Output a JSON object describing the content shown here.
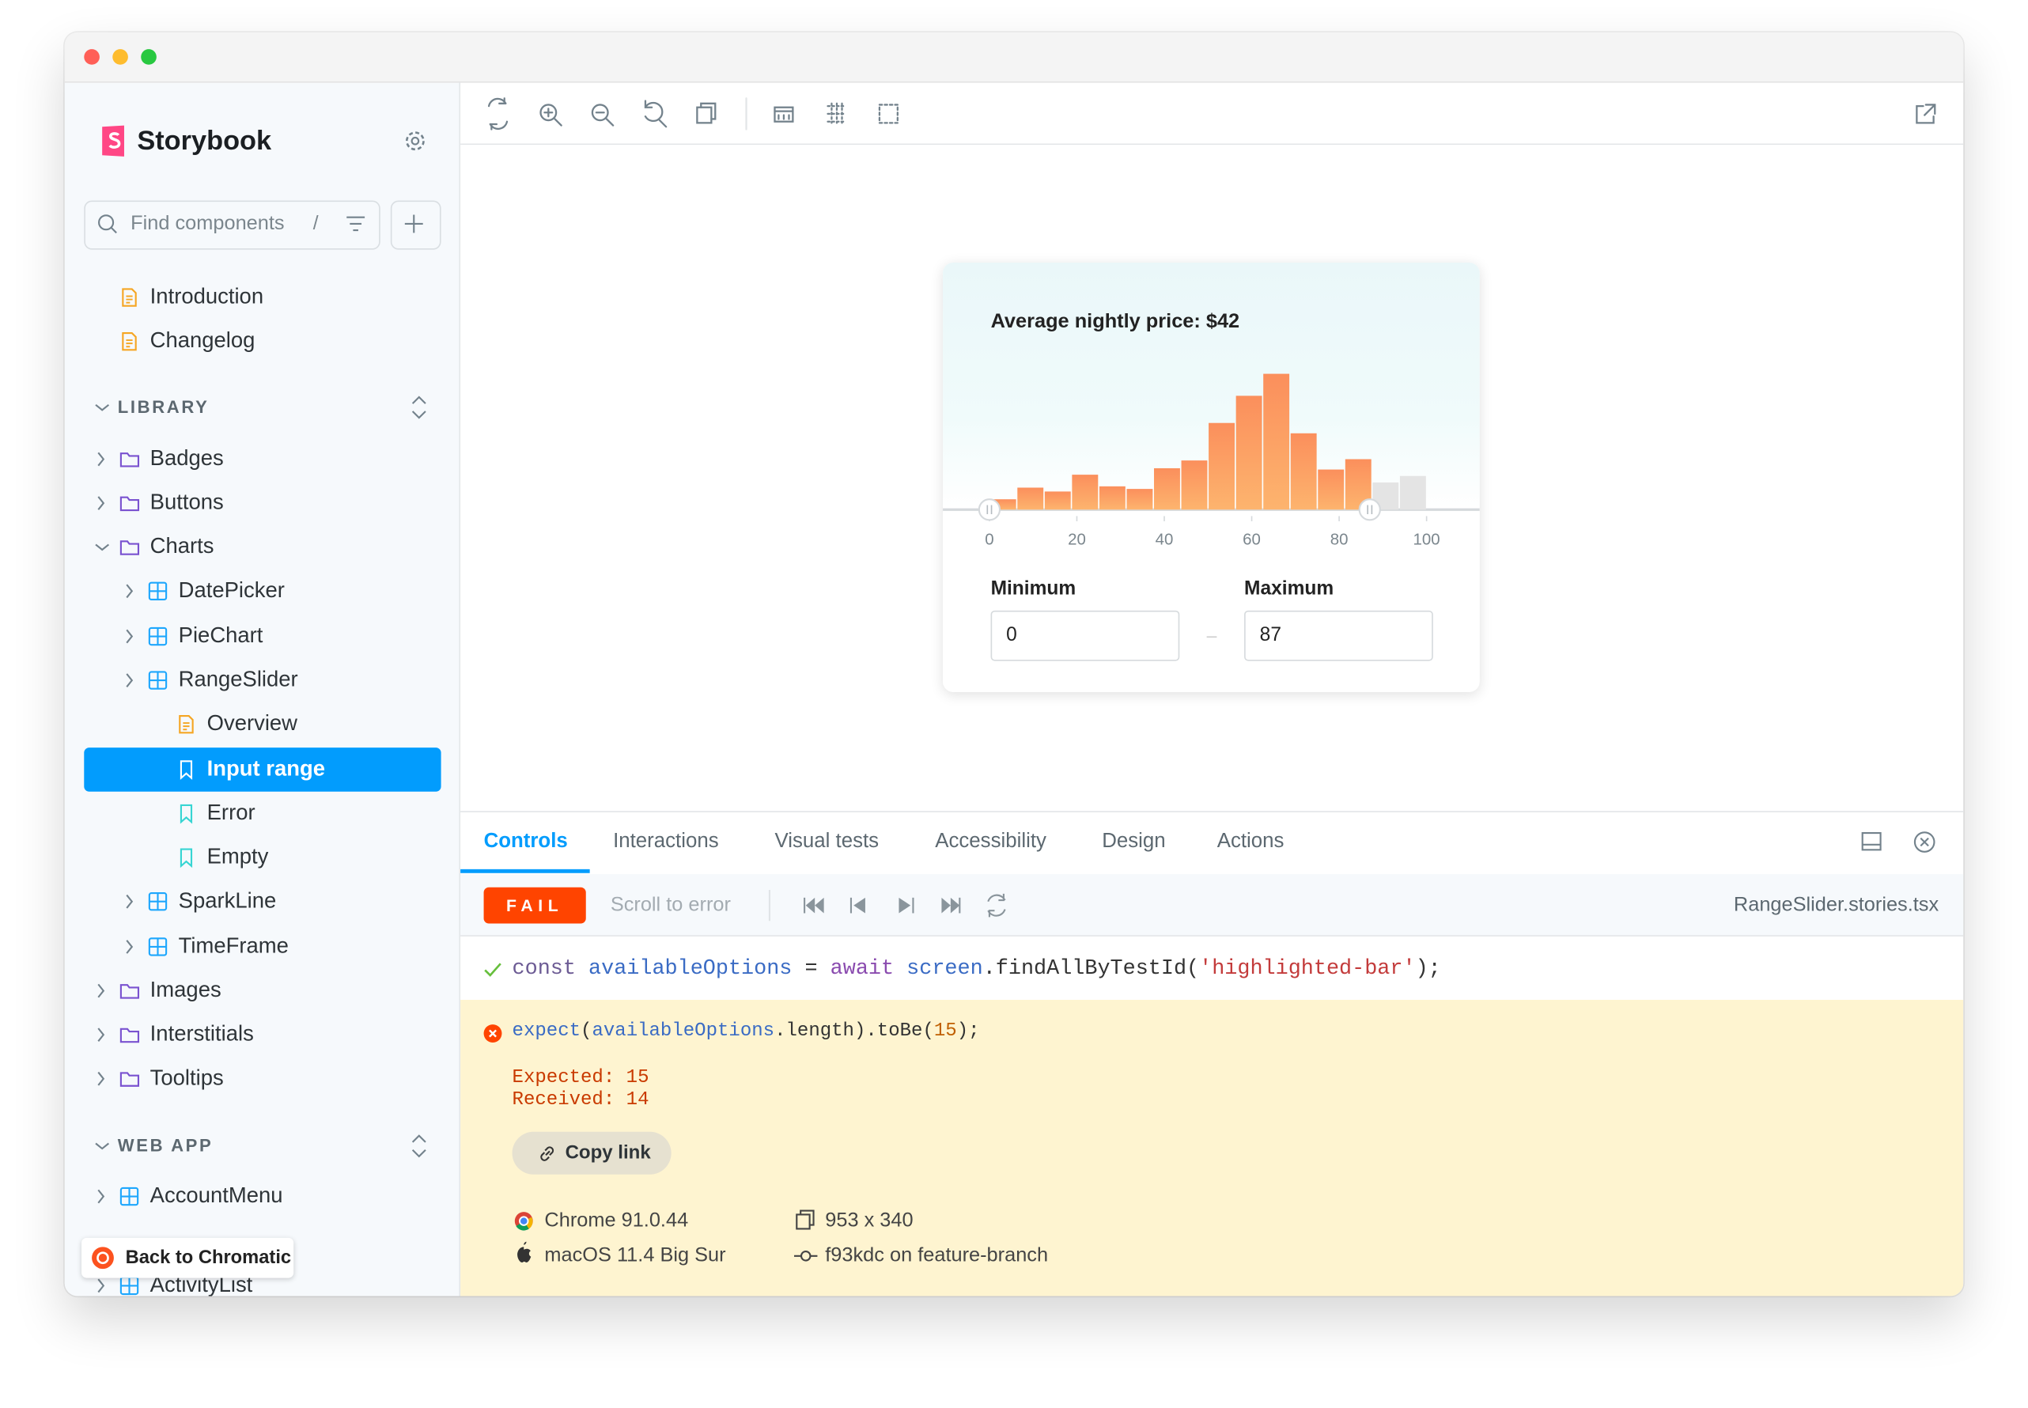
{
  "sidebar": {
    "brand": "Storybook",
    "search_placeholder": "Find components",
    "search_shortcut": "/",
    "top_items": [
      "Introduction",
      "Changelog"
    ],
    "sections": [
      {
        "title": "LIBRARY",
        "items": [
          "Badges",
          "Buttons",
          "Charts",
          "DatePicker",
          "PieChart",
          "RangeSlider",
          "Overview",
          "Input range",
          "Error",
          "Empty",
          "SparkLine",
          "TimeFrame",
          "Images",
          "Interstitials",
          "Tooltips"
        ]
      },
      {
        "title": "WEB APP",
        "items": [
          "AccountMenu",
          "ActivityList"
        ]
      }
    ],
    "back_link": "Back to Chromatic"
  },
  "preview": {
    "chart_data": {
      "type": "histogram",
      "title": "Average nightly price: $42",
      "bins": [
        0,
        6.25,
        12.5,
        18.75,
        25,
        31.25,
        37.5,
        43.75,
        50,
        56.25,
        62.5,
        68.75,
        75,
        81.25,
        87.5,
        93.75,
        100
      ],
      "values": [
        8,
        17,
        14,
        27,
        18,
        16,
        32,
        38,
        67,
        88,
        105,
        59,
        31,
        39,
        21,
        26
      ],
      "xlim": [
        0,
        100
      ],
      "xticks": [
        0,
        20,
        40,
        60,
        80,
        100
      ],
      "color": "#fb8f5c",
      "inactive_color": "#e4e4e4"
    },
    "inputs": [
      {
        "label": "Minimum",
        "value": 0
      },
      {
        "label": "Maximum",
        "value": 87
      }
    ]
  },
  "panel": {
    "tabs": [
      "Controls",
      "Interactions",
      "Visual tests",
      "Accessibility",
      "Design",
      "Actions"
    ],
    "status": "FAIL",
    "scroll_label": "Scroll to error",
    "file": "RangeSlider.stories.tsx",
    "passed_line": [
      "const",
      " availableOptions",
      " = ",
      "await",
      " screen",
      ".findAllByTestId(",
      "'highlighted-bar'",
      ");"
    ],
    "failed_line": [
      "expect",
      "(",
      "availableOptions",
      ".length).toBe(",
      "15",
      ");"
    ],
    "expected": "Expected: 15",
    "received": "Received: 14",
    "copy_link": "Copy link",
    "meta": [
      "Chrome 91.0.44",
      "953 x 340",
      "macOS 11.4 Big Sur",
      "f93kdc on feature-branch"
    ]
  }
}
